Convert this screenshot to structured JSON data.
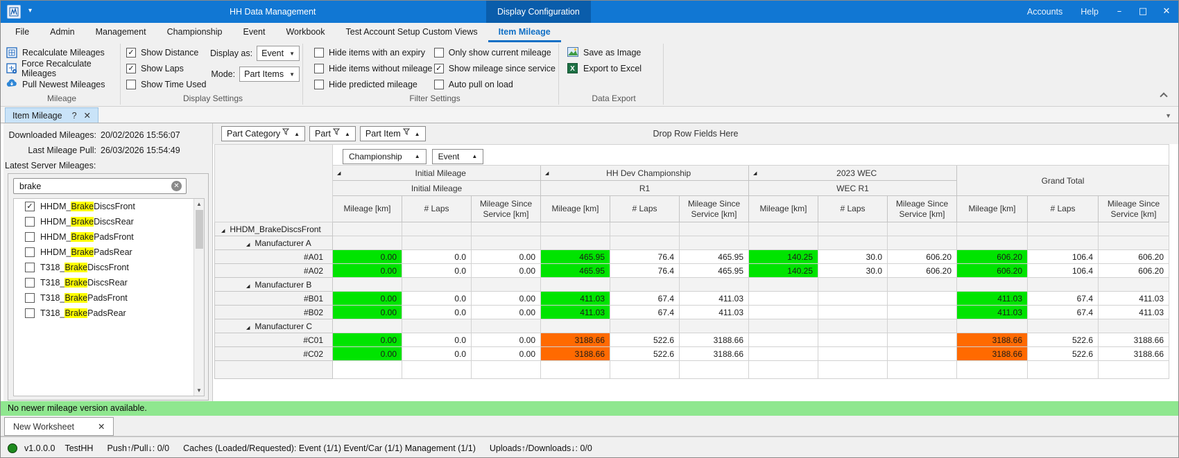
{
  "colors": {
    "green": "#00e400",
    "orange": "#ff6a00",
    "highlight": "#ffff00",
    "titlebar": "#1177d3",
    "titlebar_active": "#0a5dab",
    "message_green": "#8fe78f"
  },
  "title_bar": {
    "app_title": "HH Data Management",
    "active_view": "Display Configuration",
    "accounts": "Accounts",
    "help": "Help",
    "minimize": "–",
    "maximize": "□",
    "close": "✕"
  },
  "menu": {
    "items": [
      "File",
      "Admin",
      "Management",
      "Championship",
      "Event",
      "Workbook",
      "Test Account Setup Custom Views",
      "Item Mileage"
    ],
    "active": "Item Mileage"
  },
  "ribbon": {
    "mileage_group": {
      "label": "Mileage",
      "buttons": [
        "Recalculate Mileages",
        "Force Recalculate Mileages",
        "Pull Newest Mileages"
      ]
    },
    "display_group": {
      "label": "Display Settings",
      "checkboxes": [
        {
          "label": "Show Distance",
          "checked": true
        },
        {
          "label": "Show Laps",
          "checked": true
        },
        {
          "label": "Show Time Used",
          "checked": false
        }
      ],
      "display_as_label": "Display as:",
      "display_as_value": "Event",
      "mode_label": "Mode:",
      "mode_value": "Part Items"
    },
    "filter_group": {
      "label": "Filter Settings",
      "col1": [
        {
          "label": "Hide items with an expiry",
          "checked": false
        },
        {
          "label": "Hide items without mileage",
          "checked": false
        },
        {
          "label": "Hide predicted mileage",
          "checked": false
        }
      ],
      "col2": [
        {
          "label": "Only show current mileage",
          "checked": false
        },
        {
          "label": "Show mileage since service",
          "checked": true
        },
        {
          "label": "Auto pull on load",
          "checked": false
        }
      ]
    },
    "export_group": {
      "label": "Data Export",
      "buttons": [
        "Save as Image",
        "Export to Excel"
      ]
    }
  },
  "doc_tab": {
    "label": "Item Mileage",
    "help": "?",
    "close": "✕"
  },
  "left_panel": {
    "downloaded_label": "Downloaded Mileages:",
    "downloaded_value": "20/02/2026 15:56:07",
    "last_pull_label": "Last Mileage Pull:",
    "last_pull_value": "26/03/2026 15:54:49",
    "latest_label": "Latest Server Mileages:",
    "search_value": "brake",
    "items": [
      {
        "pre": "HHDM_",
        "hl": "Brake",
        "post": "DiscsFront",
        "checked": true
      },
      {
        "pre": "HHDM_",
        "hl": "Brake",
        "post": "DiscsRear",
        "checked": false
      },
      {
        "pre": "HHDM_",
        "hl": "Brake",
        "post": "PadsFront",
        "checked": false
      },
      {
        "pre": "HHDM_",
        "hl": "Brake",
        "post": "PadsRear",
        "checked": false
      },
      {
        "pre": "T318_",
        "hl": "Brake",
        "post": "DiscsFront",
        "checked": false
      },
      {
        "pre": "T318_",
        "hl": "Brake",
        "post": "DiscsRear",
        "checked": false
      },
      {
        "pre": "T318_",
        "hl": "Brake",
        "post": "PadsFront",
        "checked": false
      },
      {
        "pre": "T318_",
        "hl": "Brake",
        "post": "PadsRear",
        "checked": false
      }
    ]
  },
  "pivot": {
    "field_buttons": [
      "Part Category",
      "Part",
      "Part Item"
    ],
    "drop_hint": "Drop Row Fields Here",
    "column_fields": [
      "Championship",
      "Event"
    ],
    "col_groups": [
      {
        "title": "Initial Mileage",
        "subtitle": "Initial Mileage"
      },
      {
        "title": "HH Dev Championship",
        "subtitle": "R1"
      },
      {
        "title": "2023 WEC",
        "subtitle": "WEC R1"
      },
      {
        "title": "Grand Total",
        "subtitle": ""
      }
    ],
    "measures": [
      "Mileage [km]",
      "# Laps",
      "Mileage Since Service [km]"
    ],
    "rows": [
      {
        "level": 0,
        "group": true,
        "label": "HHDM_BrakeDiscsFront"
      },
      {
        "level": 1,
        "group": true,
        "label": "Manufacturer A"
      },
      {
        "level": 2,
        "label": "#A01",
        "cells": [
          [
            "0.00",
            "g"
          ],
          [
            "0.0",
            ""
          ],
          [
            "0.00",
            ""
          ],
          [
            "465.95",
            "g"
          ],
          [
            "76.4",
            ""
          ],
          [
            "465.95",
            ""
          ],
          [
            "140.25",
            "g"
          ],
          [
            "30.0",
            ""
          ],
          [
            "606.20",
            ""
          ],
          [
            "606.20",
            "g"
          ],
          [
            "106.4",
            ""
          ],
          [
            "606.20",
            ""
          ]
        ]
      },
      {
        "level": 2,
        "label": "#A02",
        "cells": [
          [
            "0.00",
            "g"
          ],
          [
            "0.0",
            ""
          ],
          [
            "0.00",
            ""
          ],
          [
            "465.95",
            "g"
          ],
          [
            "76.4",
            ""
          ],
          [
            "465.95",
            ""
          ],
          [
            "140.25",
            "g"
          ],
          [
            "30.0",
            ""
          ],
          [
            "606.20",
            ""
          ],
          [
            "606.20",
            "g"
          ],
          [
            "106.4",
            ""
          ],
          [
            "606.20",
            ""
          ]
        ]
      },
      {
        "level": 1,
        "group": true,
        "label": "Manufacturer B"
      },
      {
        "level": 2,
        "label": "#B01",
        "cells": [
          [
            "0.00",
            "g"
          ],
          [
            "0.0",
            ""
          ],
          [
            "0.00",
            ""
          ],
          [
            "411.03",
            "g"
          ],
          [
            "67.4",
            ""
          ],
          [
            "411.03",
            ""
          ],
          [
            "",
            ""
          ],
          [
            "",
            ""
          ],
          [
            "",
            ""
          ],
          [
            "411.03",
            "g"
          ],
          [
            "67.4",
            ""
          ],
          [
            "411.03",
            ""
          ]
        ]
      },
      {
        "level": 2,
        "label": "#B02",
        "cells": [
          [
            "0.00",
            "g"
          ],
          [
            "0.0",
            ""
          ],
          [
            "0.00",
            ""
          ],
          [
            "411.03",
            "g"
          ],
          [
            "67.4",
            ""
          ],
          [
            "411.03",
            ""
          ],
          [
            "",
            ""
          ],
          [
            "",
            ""
          ],
          [
            "",
            ""
          ],
          [
            "411.03",
            "g"
          ],
          [
            "67.4",
            ""
          ],
          [
            "411.03",
            ""
          ]
        ]
      },
      {
        "level": 1,
        "group": true,
        "label": "Manufacturer C"
      },
      {
        "level": 2,
        "label": "#C01",
        "cells": [
          [
            "0.00",
            "g"
          ],
          [
            "0.0",
            ""
          ],
          [
            "0.00",
            ""
          ],
          [
            "3188.66",
            "o"
          ],
          [
            "522.6",
            ""
          ],
          [
            "3188.66",
            ""
          ],
          [
            "",
            ""
          ],
          [
            "",
            ""
          ],
          [
            "",
            ""
          ],
          [
            "3188.66",
            "o"
          ],
          [
            "522.6",
            ""
          ],
          [
            "3188.66",
            ""
          ]
        ]
      },
      {
        "level": 2,
        "label": "#C02",
        "cells": [
          [
            "0.00",
            "g"
          ],
          [
            "0.0",
            ""
          ],
          [
            "0.00",
            ""
          ],
          [
            "3188.66",
            "o"
          ],
          [
            "522.6",
            ""
          ],
          [
            "3188.66",
            ""
          ],
          [
            "",
            ""
          ],
          [
            "",
            ""
          ],
          [
            "",
            ""
          ],
          [
            "3188.66",
            "o"
          ],
          [
            "522.6",
            ""
          ],
          [
            "3188.66",
            ""
          ]
        ]
      },
      {
        "empty": true,
        "label": ""
      }
    ]
  },
  "message_bar": "No newer mileage version available.",
  "worksheet_tab": {
    "label": "New Worksheet",
    "close": "✕"
  },
  "status_bar": {
    "version": "v1.0.0.0",
    "environment": "TestHH",
    "push_pull": "Push↑/Pull↓: 0/0",
    "caches": "Caches (Loaded/Requested):  Event (1/1) Event/Car (1/1) Management (1/1)",
    "uploads": "Uploads↑/Downloads↓: 0/0"
  }
}
